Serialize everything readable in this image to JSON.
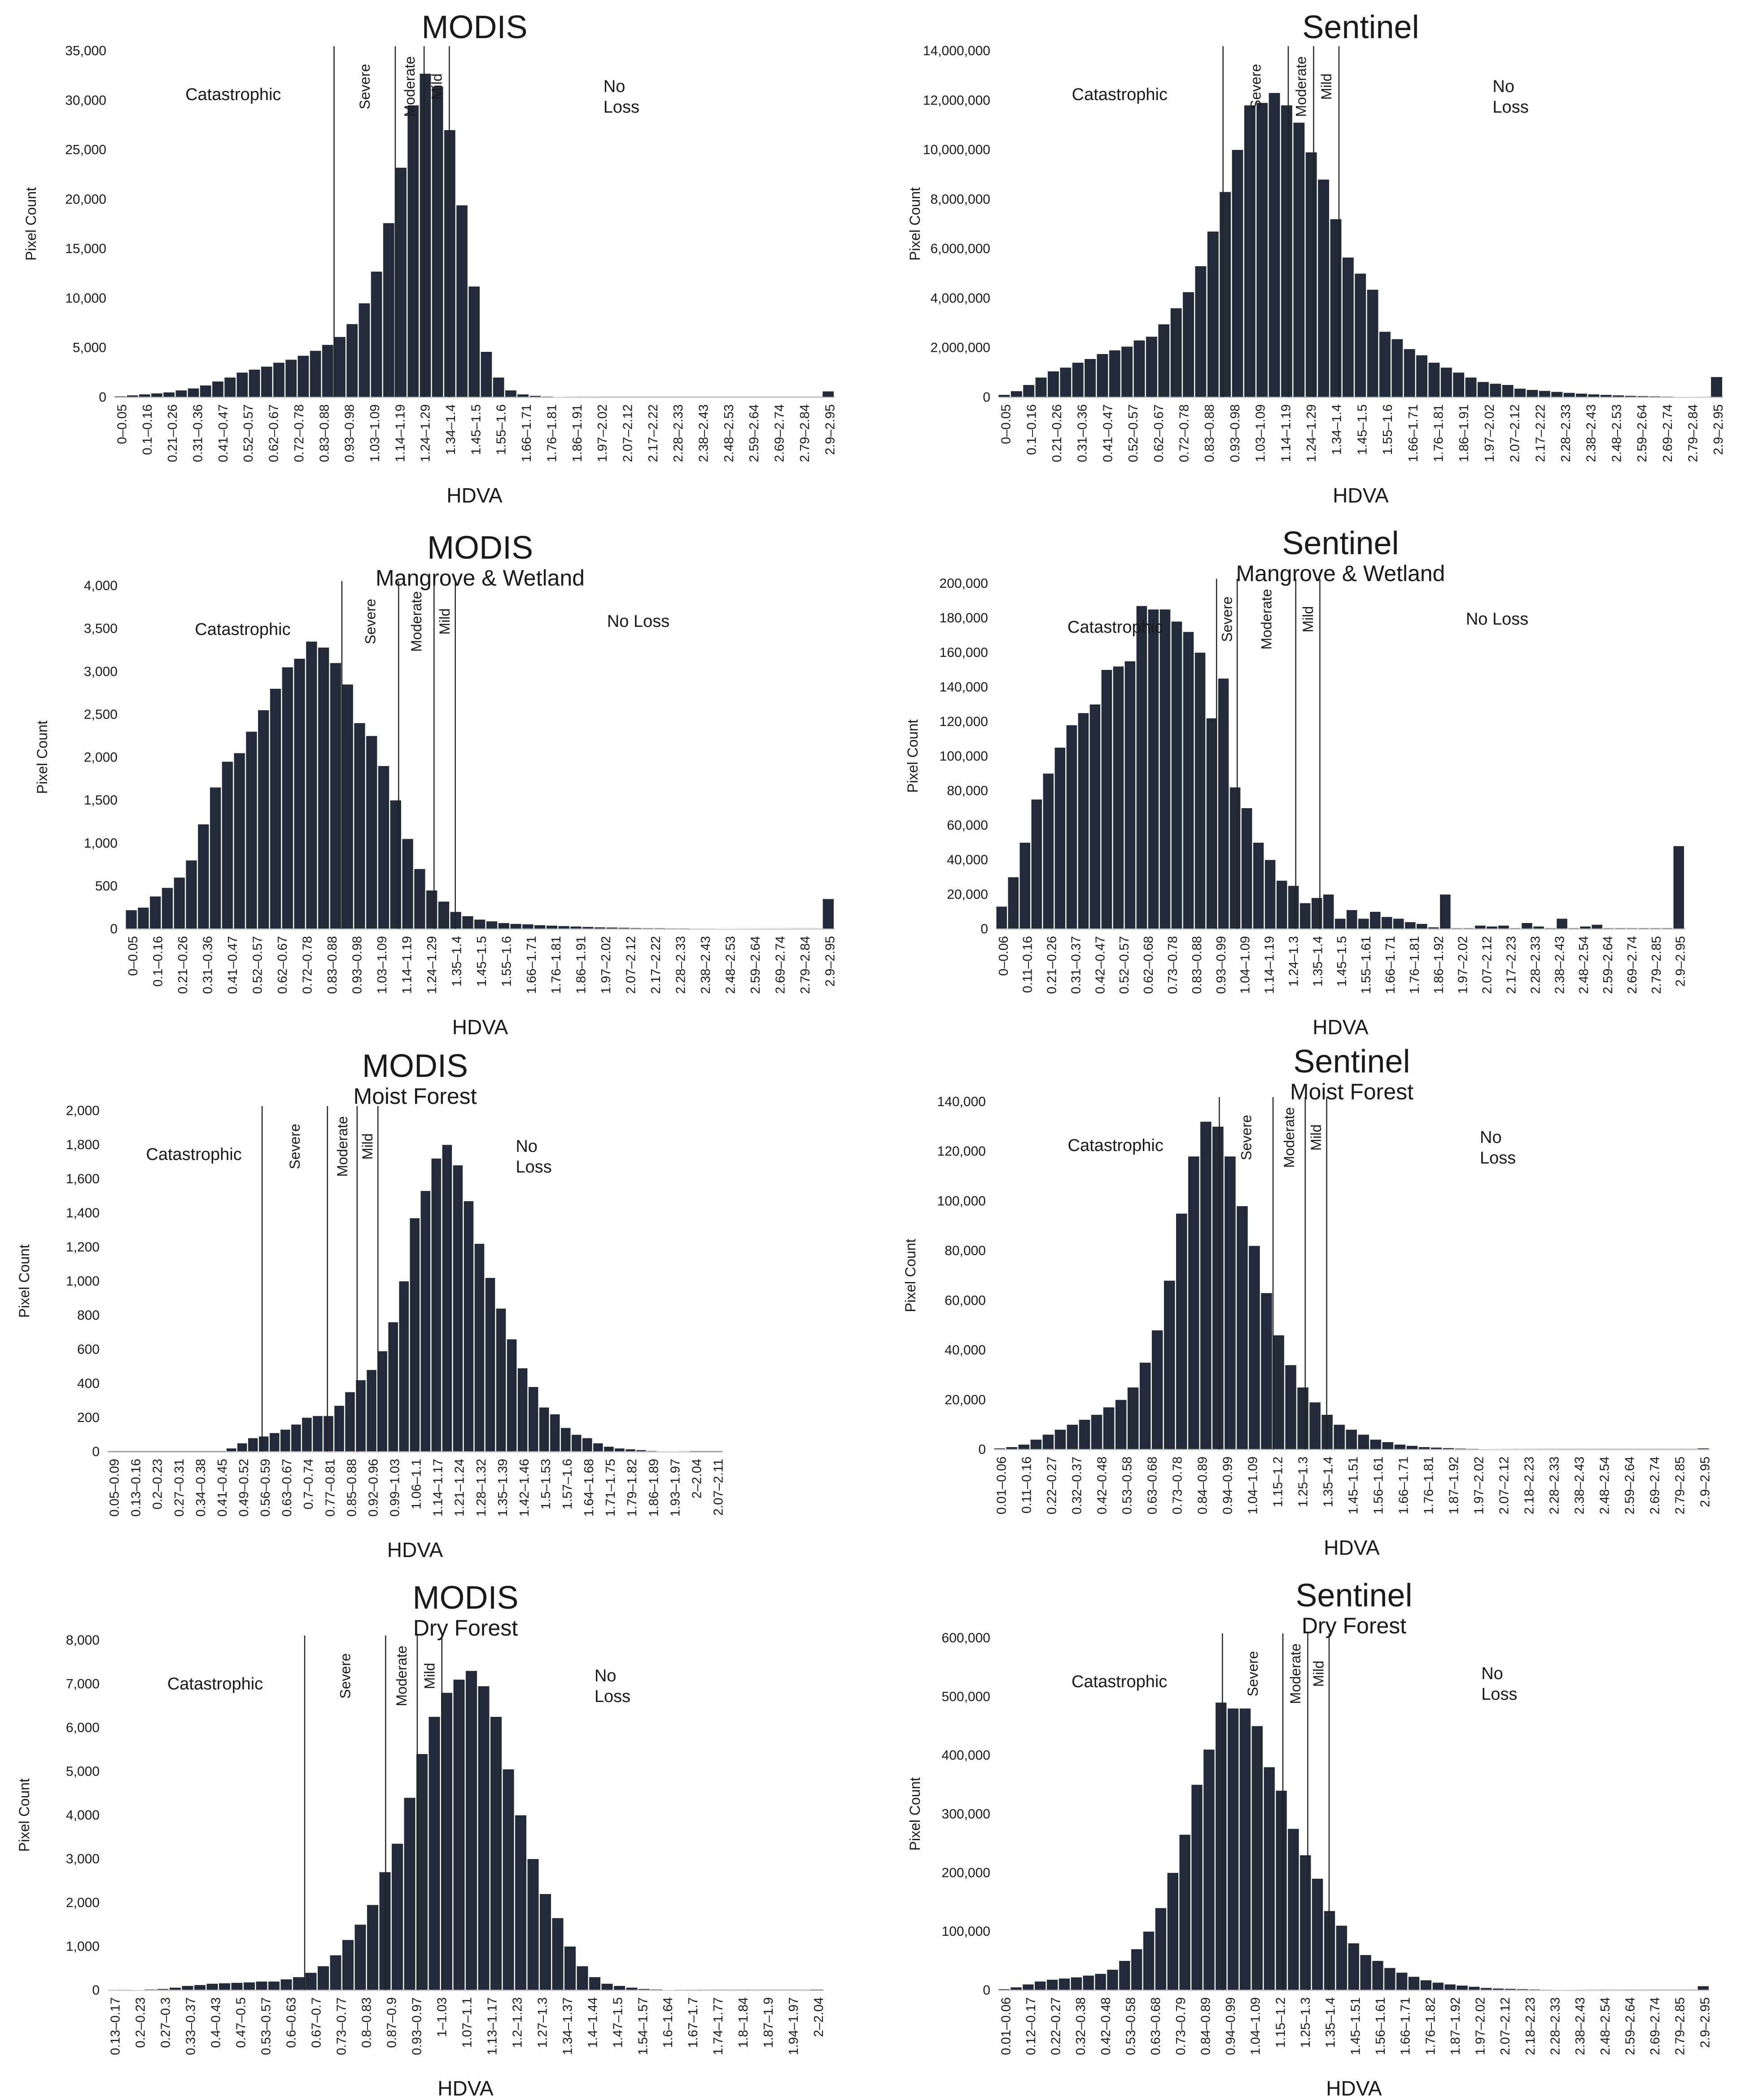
{
  "chart_data": [
    {
      "id": "modis_all",
      "type": "bar",
      "title": "MODIS",
      "subtitle": "",
      "xlabel": "HDVA",
      "ylabel": "Pixel Count",
      "ylim": [
        0,
        35000
      ],
      "yticks": [
        "0",
        "5,000",
        "10,000",
        "15,000",
        "20,000",
        "25,000",
        "30,000",
        "35,000"
      ],
      "tick_labels": [
        "0–0.05",
        "0.1–0.16",
        "0.21–0.26",
        "0.31–0.36",
        "0.41–0.47",
        "0.52–0.57",
        "0.62–0.67",
        "0.72–0.78",
        "0.83–0.88",
        "0.93–0.98",
        "1.03–1.09",
        "1.14–1.19",
        "1.24–1.29",
        "1.34–1.4",
        "1.45–1.5",
        "1.55–1.6",
        "1.66–1.71",
        "1.76–1.81",
        "1.86–1.91",
        "1.97–2.02",
        "2.07–2.12",
        "2.17–2.22",
        "2.28–2.33",
        "2.38–2.43",
        "2.48–2.53",
        "2.59–2.64",
        "2.69–2.74",
        "2.79–2.84",
        "2.9–2.95"
      ],
      "values": [
        100,
        200,
        300,
        400,
        500,
        700,
        900,
        1200,
        1600,
        2000,
        2500,
        2800,
        3100,
        3500,
        3800,
        4200,
        4700,
        5300,
        6100,
        7400,
        9500,
        12700,
        17600,
        23200,
        29500,
        32700,
        31400,
        27000,
        19400,
        11200,
        4600,
        2000,
        700,
        300,
        150,
        80,
        40,
        20,
        10,
        5,
        3,
        2,
        1,
        1,
        1,
        1,
        1,
        1,
        1,
        1,
        1,
        1,
        1,
        1,
        1,
        1,
        1,
        1,
        600
      ],
      "thresholds": [
        {
          "label": "Catastrophic",
          "end": 0.61
        },
        {
          "label": "Severe",
          "end": 0.78
        },
        {
          "label": "Moderate",
          "end": 0.86
        },
        {
          "label": "Mild",
          "end": 0.93
        },
        {
          "label": "No\nLoss"
        }
      ]
    },
    {
      "id": "sentinel_all",
      "type": "bar",
      "title": "Sentinel",
      "subtitle": "",
      "xlabel": "HDVA",
      "ylabel": "Pixel Count",
      "ylim": [
        0,
        14000000
      ],
      "yticks": [
        "0",
        "2,000,000",
        "4,000,000",
        "6,000,000",
        "8,000,000",
        "10,000,000",
        "12,000,000",
        "14,000,000"
      ],
      "tick_labels": [
        "0–0.05",
        "0.1–0.16",
        "0.21–0.26",
        "0.31–0.36",
        "0.41–0.47",
        "0.52–0.57",
        "0.62–0.67",
        "0.72–0.78",
        "0.83–0.88",
        "0.93–0.98",
        "1.03–1.09",
        "1.14–1.19",
        "1.24–1.29",
        "1.34–1.4",
        "1.45–1.5",
        "1.55–1.6",
        "1.66–1.71",
        "1.76–1.81",
        "1.86–1.91",
        "1.97–2.02",
        "2.07–2.12",
        "2.17–2.22",
        "2.28–2.33",
        "2.38–2.43",
        "2.48–2.53",
        "2.59–2.64",
        "2.69–2.74",
        "2.79–2.84",
        "2.9–2.95"
      ],
      "values": [
        100000,
        250000,
        500000,
        800000,
        1050000,
        1200000,
        1400000,
        1550000,
        1750000,
        1900000,
        2050000,
        2300000,
        2450000,
        2950000,
        3600000,
        4250000,
        5300000,
        6700000,
        8300000,
        10000000,
        11800000,
        11900000,
        12300000,
        11800000,
        11100000,
        9900000,
        8800000,
        7200000,
        5650000,
        5000000,
        4350000,
        2650000,
        2350000,
        1950000,
        1700000,
        1400000,
        1200000,
        1000000,
        800000,
        620000,
        550000,
        500000,
        350000,
        300000,
        260000,
        220000,
        180000,
        150000,
        120000,
        100000,
        80000,
        60000,
        50000,
        40000,
        30000,
        20000,
        15000,
        10000,
        820000
      ],
      "thresholds": [
        {
          "label": "Catastrophic",
          "end": 0.62
        },
        {
          "label": "Severe",
          "end": 0.8
        },
        {
          "label": "Moderate",
          "end": 0.87
        },
        {
          "label": "Mild",
          "end": 0.94
        },
        {
          "label": "No\nLoss"
        }
      ]
    },
    {
      "id": "modis_mangrove",
      "type": "bar",
      "title": "MODIS",
      "subtitle": "Mangrove & Wetland",
      "xlabel": "HDVA",
      "ylabel": "Pixel Count",
      "ylim": [
        0,
        4000
      ],
      "yticks": [
        "0",
        "500",
        "1,000",
        "1,500",
        "2,000",
        "2,500",
        "3,000",
        "3,500",
        "4,000"
      ],
      "tick_labels": [
        "0–0.05",
        "0.1–0.16",
        "0.21–0.26",
        "0.31–0.36",
        "0.41–0.47",
        "0.52–0.57",
        "0.62–0.67",
        "0.72–0.78",
        "0.83–0.88",
        "0.93–0.98",
        "1.03–1.09",
        "1.14–1.19",
        "1.24–1.29",
        "1.35–1.4",
        "1.45–1.5",
        "1.55–1.6",
        "1.66–1.71",
        "1.76–1.81",
        "1.86–1.91",
        "1.97–2.02",
        "2.07–2.12",
        "2.17–2.22",
        "2.28–2.33",
        "2.38–2.43",
        "2.48–2.53",
        "2.59–2.64",
        "2.69–2.74",
        "2.79–2.84",
        "2.9–2.95"
      ],
      "values": [
        220,
        250,
        380,
        480,
        600,
        800,
        1220,
        1650,
        1950,
        2050,
        2300,
        2550,
        2800,
        3050,
        3150,
        3350,
        3280,
        3100,
        2850,
        2400,
        2250,
        1900,
        1500,
        1050,
        700,
        450,
        320,
        200,
        150,
        110,
        90,
        70,
        60,
        55,
        45,
        40,
        35,
        30,
        25,
        20,
        18,
        15,
        12,
        10,
        10,
        8,
        8,
        6,
        6,
        5,
        5,
        4,
        4,
        3,
        3,
        2,
        2,
        2,
        350
      ],
      "thresholds": [
        {
          "label": "Catastrophic",
          "end": 0.61
        },
        {
          "label": "Severe",
          "end": 0.77
        },
        {
          "label": "Moderate",
          "end": 0.87
        },
        {
          "label": "Mild",
          "end": 0.93
        },
        {
          "label": "No Loss"
        }
      ]
    },
    {
      "id": "sentinel_mangrove",
      "type": "bar",
      "title": "Sentinel",
      "subtitle": "Mangrove & Wetland",
      "xlabel": "HDVA",
      "ylabel": "Pixel Count",
      "ylim": [
        0,
        200000
      ],
      "yticks": [
        "0",
        "20,000",
        "40,000",
        "60,000",
        "80,000",
        "100,000",
        "120,000",
        "140,000",
        "160,000",
        "180,000",
        "200,000"
      ],
      "tick_labels": [
        "0–0.06",
        "0.11–0.16",
        "0.21–0.26",
        "0.31–0.37",
        "0.42–0.47",
        "0.52–0.57",
        "0.62–0.68",
        "0.73–0.78",
        "0.83–0.88",
        "0.93–0.99",
        "1.04–1.09",
        "1.14–1.19",
        "1.24–1.3",
        "1.35–1.4",
        "1.45–1.5",
        "1.55–1.61",
        "1.66–1.71",
        "1.76–1.81",
        "1.86–1.92",
        "1.97–2.02",
        "2.07–2.12",
        "2.17–2.23",
        "2.28–2.33",
        "2.38–2.43",
        "2.48–2.54",
        "2.59–2.64",
        "2.69–2.74",
        "2.79–2.85",
        "2.9–2.95"
      ],
      "values": [
        13000,
        30000,
        50000,
        75000,
        90000,
        105000,
        118000,
        125000,
        130000,
        150000,
        152000,
        155000,
        187000,
        185000,
        185000,
        178000,
        172000,
        160000,
        122000,
        145000,
        82000,
        70000,
        50000,
        40000,
        28000,
        25000,
        15000,
        18000,
        20000,
        6000,
        11000,
        6000,
        10000,
        7000,
        6000,
        4000,
        3000,
        1000,
        20000,
        500,
        500,
        2000,
        1500,
        2000,
        500,
        3500,
        1500,
        500,
        6000,
        500,
        1500,
        2500,
        500,
        500,
        500,
        500,
        500,
        500,
        48000
      ],
      "thresholds": [
        {
          "label": "Catastrophic",
          "end": 0.64
        },
        {
          "label": "Severe",
          "end": 0.7
        },
        {
          "label": "Moderate",
          "end": 0.87
        },
        {
          "label": "Mild",
          "end": 0.94
        },
        {
          "label": "No Loss"
        }
      ]
    },
    {
      "id": "modis_moist",
      "type": "bar",
      "title": "MODIS",
      "subtitle": "Moist Forest",
      "xlabel": "HDVA",
      "ylabel": "Pixel Count",
      "ylim": [
        0,
        2000
      ],
      "yticks": [
        "0",
        "200",
        "400",
        "600",
        "800",
        "1,000",
        "1,200",
        "1,400",
        "1,600",
        "1,800",
        "2,000"
      ],
      "tick_labels": [
        "0.05–0.09",
        "0.13–0.16",
        "0.2–0.23",
        "0.27–0.31",
        "0.34–0.38",
        "0.41–0.45",
        "0.49–0.52",
        "0.56–0.59",
        "0.63–0.67",
        "0.7–0.74",
        "0.77–0.81",
        "0.85–0.88",
        "0.92–0.96",
        "0.99–1.03",
        "1.06–1.1",
        "1.14–1.17",
        "1.21–1.24",
        "1.28–1.32",
        "1.35–1.39",
        "1.42–1.46",
        "1.5–1.53",
        "1.57–1.6",
        "1.64–1.68",
        "1.71–1.75",
        "1.79–1.82",
        "1.86–1.89",
        "1.93–1.97",
        "2–2.04",
        "2.07–2.11"
      ],
      "values": [
        0,
        0,
        0,
        0,
        0,
        0,
        0,
        0,
        0,
        0,
        0,
        20,
        50,
        80,
        90,
        110,
        130,
        160,
        200,
        210,
        210,
        270,
        350,
        420,
        480,
        590,
        760,
        1000,
        1370,
        1530,
        1720,
        1800,
        1680,
        1470,
        1220,
        1020,
        840,
        660,
        490,
        380,
        260,
        220,
        140,
        100,
        80,
        50,
        30,
        20,
        15,
        10,
        5,
        3,
        2,
        1,
        0,
        0,
        0
      ],
      "thresholds": [
        {
          "label": "Catastrophic",
          "end": 0.52
        },
        {
          "label": "Severe",
          "end": 0.74
        },
        {
          "label": "Moderate",
          "end": 0.84
        },
        {
          "label": "Mild",
          "end": 0.91
        },
        {
          "label": "No\nLoss"
        }
      ]
    },
    {
      "id": "sentinel_moist",
      "type": "bar",
      "title": "Sentinel",
      "subtitle": "Moist Forest",
      "xlabel": "HDVA",
      "ylabel": "Pixel Count",
      "ylim": [
        0,
        140000
      ],
      "yticks": [
        "0",
        "20,000",
        "40,000",
        "60,000",
        "80,000",
        "100,000",
        "120,000",
        "140,000"
      ],
      "tick_labels": [
        "0.01–0.06",
        "0.11–0.16",
        "0.22–0.27",
        "0.32–0.37",
        "0.42–0.48",
        "0.53–0.58",
        "0.63–0.68",
        "0.73–0.78",
        "0.84–0.89",
        "0.94–0.99",
        "1.04–1.09",
        "1.15–1.2",
        "1.25–1.3",
        "1.35–1.4",
        "1.45–1.51",
        "1.56–1.61",
        "1.66–1.71",
        "1.76–1.81",
        "1.87–1.92",
        "1.97–2.02",
        "2.07–2.12",
        "2.18–2.23",
        "2.28–2.33",
        "2.38–2.43",
        "2.48–2.54",
        "2.59–2.64",
        "2.69–2.74",
        "2.79–2.85",
        "2.9–2.95"
      ],
      "values": [
        500,
        1000,
        2000,
        4000,
        6000,
        8000,
        10000,
        12000,
        14000,
        17000,
        20000,
        25000,
        35000,
        48000,
        68000,
        95000,
        118000,
        132000,
        130000,
        118000,
        98000,
        82000,
        63000,
        46000,
        34000,
        25000,
        19000,
        14000,
        10000,
        8000,
        6000,
        4000,
        3000,
        2000,
        1500,
        1000,
        800,
        600,
        400,
        300,
        200,
        150,
        100,
        80,
        60,
        40,
        30,
        20,
        15,
        10,
        8,
        6,
        4,
        3,
        2,
        2,
        1,
        1,
        500
      ],
      "thresholds": [
        {
          "label": "Catastrophic",
          "end": 0.63
        },
        {
          "label": "Severe",
          "end": 0.78
        },
        {
          "label": "Moderate",
          "end": 0.87
        },
        {
          "label": "Mild",
          "end": 0.93
        },
        {
          "label": "No\nLoss"
        }
      ]
    },
    {
      "id": "modis_dry",
      "type": "bar",
      "title": "MODIS",
      "subtitle": "Dry Forest",
      "xlabel": "HDVA",
      "ylabel": "Pixel Count",
      "ylim": [
        0,
        8000
      ],
      "yticks": [
        "0",
        "1,000",
        "2,000",
        "3,000",
        "4,000",
        "5,000",
        "6,000",
        "7,000",
        "8,000"
      ],
      "tick_labels": [
        "0.13–0.17",
        "0.2–0.23",
        "0.27–0.3",
        "0.33–0.37",
        "0.4–0.43",
        "0.47–0.5",
        "0.53–0.57",
        "0.6–0.63",
        "0.67–0.7",
        "0.73–0.77",
        "0.8–0.83",
        "0.87–0.9",
        "0.93–0.97",
        "1–1.03",
        "1.07–1.1",
        "1.13–1.17",
        "1.2–1.23",
        "1.27–1.3",
        "1.34–1.37",
        "1.4–1.44",
        "1.47–1.5",
        "1.54–1.57",
        "1.6–1.64",
        "1.67–1.7",
        "1.74–1.77",
        "1.8–1.84",
        "1.87–1.9",
        "1.94–1.97",
        "2–2.04"
      ],
      "values": [
        5,
        5,
        10,
        20,
        30,
        60,
        100,
        120,
        150,
        160,
        170,
        180,
        200,
        200,
        250,
        300,
        400,
        550,
        800,
        1150,
        1500,
        1950,
        2700,
        3350,
        4400,
        5400,
        6250,
        6800,
        7100,
        7300,
        6950,
        6250,
        5050,
        4000,
        3000,
        2200,
        1650,
        1000,
        550,
        300,
        150,
        100,
        60,
        30,
        20,
        10,
        5,
        3,
        2,
        1,
        1,
        1,
        1,
        1,
        1,
        1,
        1,
        0
      ],
      "thresholds": [
        {
          "label": "Catastrophic",
          "end": 0.56
        },
        {
          "label": "Severe",
          "end": 0.79
        },
        {
          "label": "Moderate",
          "end": 0.88
        },
        {
          "label": "Mild",
          "end": 0.95
        },
        {
          "label": "No\nLoss"
        }
      ]
    },
    {
      "id": "sentinel_dry",
      "type": "bar",
      "title": "Sentinel",
      "subtitle": "Dry Forest",
      "xlabel": "HDVA",
      "ylabel": "Pixel Count",
      "ylim": [
        0,
        600000
      ],
      "yticks": [
        "0",
        "100,000",
        "200,000",
        "300,000",
        "400,000",
        "500,000",
        "600,000"
      ],
      "tick_labels": [
        "0.01–0.06",
        "0.12–0.17",
        "0.22–0.27",
        "0.32–0.38",
        "0.42–0.48",
        "0.53–0.58",
        "0.63–0.68",
        "0.73–0.79",
        "0.84–0.89",
        "0.94–0.99",
        "1.04–1.09",
        "1.15–1.2",
        "1.25–1.3",
        "1.35–1.4",
        "1.45–1.51",
        "1.56–1.61",
        "1.66–1.71",
        "1.76–1.82",
        "1.87–1.92",
        "1.97–2.02",
        "2.07–2.12",
        "2.18–2.23",
        "2.28–2.33",
        "2.38–2.43",
        "2.48–2.54",
        "2.59–2.64",
        "2.69–2.74",
        "2.79–2.85",
        "2.9–2.95"
      ],
      "values": [
        2000,
        5000,
        10000,
        15000,
        18000,
        20000,
        22000,
        25000,
        28000,
        35000,
        50000,
        70000,
        100000,
        140000,
        200000,
        265000,
        350000,
        410000,
        490000,
        480000,
        480000,
        450000,
        380000,
        340000,
        275000,
        230000,
        190000,
        135000,
        110000,
        80000,
        60000,
        50000,
        38000,
        30000,
        23000,
        17000,
        13000,
        10000,
        8000,
        6000,
        4000,
        3000,
        2500,
        2000,
        1500,
        1000,
        800,
        600,
        400,
        300,
        200,
        150,
        100,
        80,
        60,
        40,
        20,
        10,
        7000
      ],
      "thresholds": [
        {
          "label": "Catastrophic",
          "end": 0.63
        },
        {
          "label": "Severe",
          "end": 0.8
        },
        {
          "label": "Moderate",
          "end": 0.87
        },
        {
          "label": "Mild",
          "end": 0.93
        },
        {
          "label": "No\nLoss"
        }
      ]
    }
  ]
}
